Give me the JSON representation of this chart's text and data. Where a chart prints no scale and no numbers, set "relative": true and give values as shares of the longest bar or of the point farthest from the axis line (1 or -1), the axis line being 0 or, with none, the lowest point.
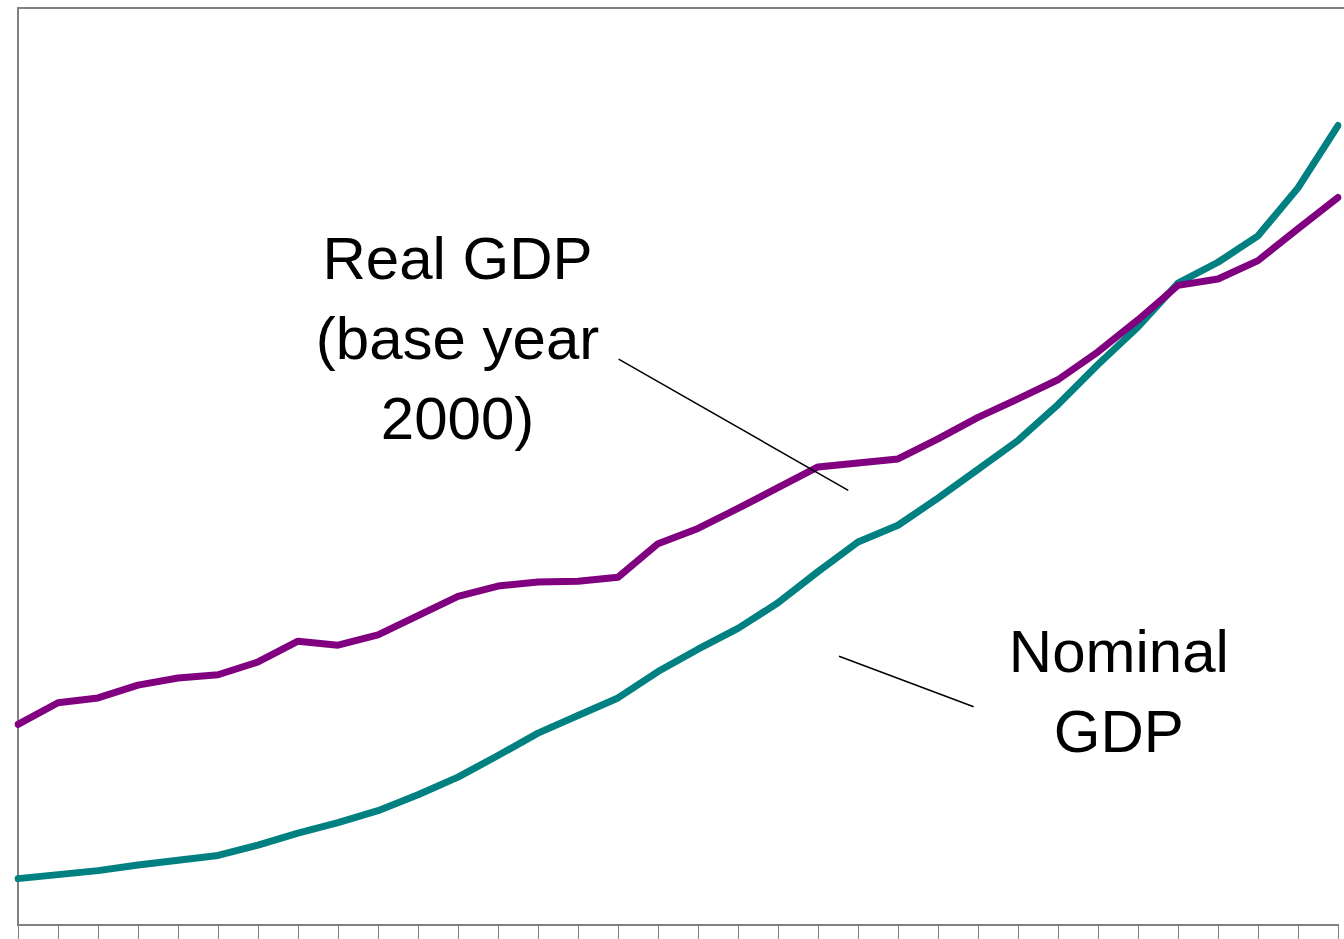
{
  "chart_data": {
    "type": "line",
    "relative": true,
    "categories": [
      null,
      null,
      null,
      null,
      null,
      null,
      null,
      null,
      null,
      null,
      null,
      null,
      null,
      null,
      null,
      null,
      null,
      null,
      null,
      null,
      null,
      null,
      null,
      null,
      null,
      null,
      null,
      null,
      null,
      null,
      null,
      null,
      null,
      null
    ],
    "series": [
      {
        "name": "Real GDP (base year 2000)",
        "color": "#800080",
        "values": [
          0.251,
          0.278,
          0.284,
          0.3,
          0.309,
          0.313,
          0.329,
          0.355,
          0.35,
          0.363,
          0.387,
          0.411,
          0.424,
          0.429,
          0.43,
          0.435,
          0.477,
          0.496,
          0.521,
          0.547,
          0.573,
          0.578,
          0.583,
          0.608,
          0.635,
          0.658,
          0.682,
          0.717,
          0.757,
          0.8,
          0.808,
          0.831,
          0.871,
          0.91
        ]
      },
      {
        "name": "Nominal GDP",
        "color": "#008080",
        "values": [
          0.058,
          0.063,
          0.068,
          0.075,
          0.081,
          0.087,
          0.1,
          0.115,
          0.128,
          0.143,
          0.163,
          0.185,
          0.212,
          0.24,
          0.262,
          0.284,
          0.317,
          0.345,
          0.371,
          0.403,
          0.442,
          0.479,
          0.5,
          0.534,
          0.57,
          0.606,
          0.651,
          0.701,
          0.748,
          0.803,
          0.829,
          0.862,
          0.922,
          1
        ]
      }
    ],
    "grid": false,
    "legend": false,
    "marker": "none",
    "line_style": "solid"
  }
}
